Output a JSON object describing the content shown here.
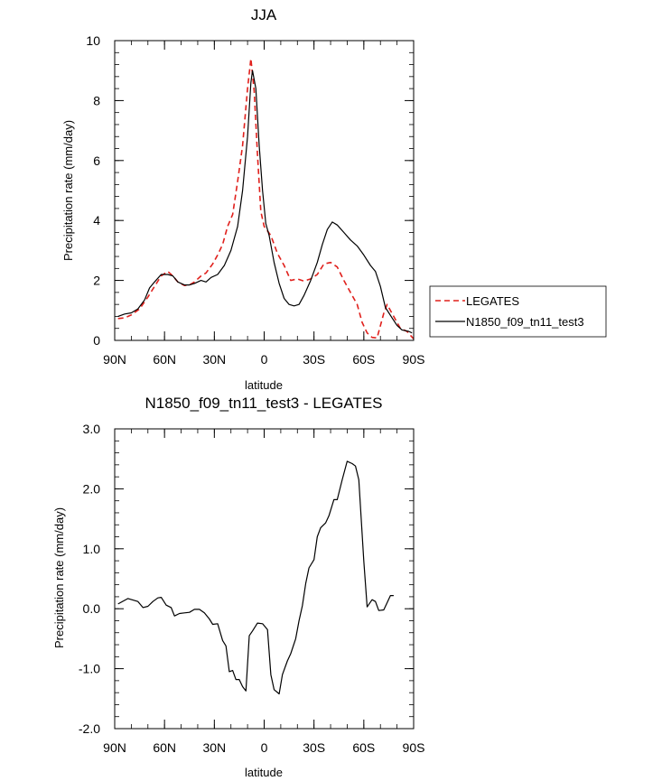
{
  "chart_data": [
    {
      "type": "line",
      "title": "JJA",
      "xlabel": "latitude",
      "ylabel": "Precipitation rate (mm/day)",
      "xlim": [
        90,
        -90
      ],
      "ylim": [
        0,
        10
      ],
      "x_ticks": [
        {
          "value": 90,
          "label": "90N"
        },
        {
          "value": 60,
          "label": "60N"
        },
        {
          "value": 30,
          "label": "30N"
        },
        {
          "value": 0,
          "label": "0"
        },
        {
          "value": -30,
          "label": "30S"
        },
        {
          "value": -60,
          "label": "60S"
        },
        {
          "value": -90,
          "label": "90S"
        }
      ],
      "y_ticks": [
        {
          "value": 0,
          "label": "0"
        },
        {
          "value": 2,
          "label": "2"
        },
        {
          "value": 4,
          "label": "4"
        },
        {
          "value": 6,
          "label": "6"
        },
        {
          "value": 8,
          "label": "8"
        },
        {
          "value": 10,
          "label": "10"
        }
      ],
      "legend": {
        "position": "right"
      },
      "series": [
        {
          "name": "LEGATES",
          "color": "#e0201c",
          "dash": "dashed",
          "points": [
            [
              88,
              0.73
            ],
            [
              84,
              0.75
            ],
            [
              80,
              0.85
            ],
            [
              75,
              1.05
            ],
            [
              70,
              1.45
            ],
            [
              66,
              1.8
            ],
            [
              62,
              2.15
            ],
            [
              58,
              2.3
            ],
            [
              55,
              2.15
            ],
            [
              52,
              1.95
            ],
            [
              48,
              1.83
            ],
            [
              45,
              1.85
            ],
            [
              42,
              1.95
            ],
            [
              38,
              2.15
            ],
            [
              35,
              2.25
            ],
            [
              31,
              2.55
            ],
            [
              28,
              2.85
            ],
            [
              25,
              3.2
            ],
            [
              22,
              3.8
            ],
            [
              19,
              4.2
            ],
            [
              16,
              5.3
            ],
            [
              13,
              6.5
            ],
            [
              10,
              8.4
            ],
            [
              8,
              9.4
            ],
            [
              6,
              8.3
            ],
            [
              4,
              6.2
            ],
            [
              2,
              4.3
            ],
            [
              0,
              3.8
            ],
            [
              -4,
              3.5
            ],
            [
              -8,
              2.9
            ],
            [
              -12,
              2.5
            ],
            [
              -16,
              2.0
            ],
            [
              -20,
              2.05
            ],
            [
              -24,
              1.98
            ],
            [
              -28,
              2.05
            ],
            [
              -32,
              2.2
            ],
            [
              -36,
              2.55
            ],
            [
              -40,
              2.6
            ],
            [
              -44,
              2.45
            ],
            [
              -48,
              2.0
            ],
            [
              -52,
              1.6
            ],
            [
              -56,
              1.2
            ],
            [
              -59,
              0.6
            ],
            [
              -62,
              0.25
            ],
            [
              -65,
              0.1
            ],
            [
              -68,
              0.08
            ],
            [
              -72,
              0.9
            ],
            [
              -74,
              1.2
            ],
            [
              -78,
              0.8
            ],
            [
              -82,
              0.4
            ],
            [
              -86,
              0.3
            ],
            [
              -90,
              0.05
            ]
          ]
        },
        {
          "name": "N1850_f09_tn11_test3",
          "color": "#000000",
          "dash": "solid",
          "points": [
            [
              88,
              0.8
            ],
            [
              84,
              0.88
            ],
            [
              80,
              0.92
            ],
            [
              76,
              1.05
            ],
            [
              72,
              1.35
            ],
            [
              69,
              1.75
            ],
            [
              66,
              1.95
            ],
            [
              62,
              2.2
            ],
            [
              58,
              2.2
            ],
            [
              55,
              2.15
            ],
            [
              52,
              1.95
            ],
            [
              48,
              1.85
            ],
            [
              45,
              1.85
            ],
            [
              42,
              1.9
            ],
            [
              38,
              2.0
            ],
            [
              35,
              1.95
            ],
            [
              32,
              2.1
            ],
            [
              28,
              2.2
            ],
            [
              24,
              2.5
            ],
            [
              20,
              3.0
            ],
            [
              16,
              3.8
            ],
            [
              13,
              5.0
            ],
            [
              10,
              6.8
            ],
            [
              8,
              8.6
            ],
            [
              7,
              9.0
            ],
            [
              5,
              8.4
            ],
            [
              3,
              6.5
            ],
            [
              1,
              5.0
            ],
            [
              -1,
              3.9
            ],
            [
              -3,
              3.5
            ],
            [
              -6,
              2.6
            ],
            [
              -9,
              1.9
            ],
            [
              -12,
              1.4
            ],
            [
              -15,
              1.2
            ],
            [
              -18,
              1.15
            ],
            [
              -21,
              1.2
            ],
            [
              -24,
              1.5
            ],
            [
              -28,
              2.0
            ],
            [
              -32,
              2.6
            ],
            [
              -35,
              3.2
            ],
            [
              -38,
              3.7
            ],
            [
              -41,
              3.95
            ],
            [
              -44,
              3.85
            ],
            [
              -48,
              3.6
            ],
            [
              -52,
              3.35
            ],
            [
              -56,
              3.15
            ],
            [
              -60,
              2.85
            ],
            [
              -64,
              2.5
            ],
            [
              -67,
              2.3
            ],
            [
              -70,
              1.8
            ],
            [
              -73,
              1.1
            ],
            [
              -77,
              0.75
            ],
            [
              -80,
              0.5
            ],
            [
              -83,
              0.35
            ],
            [
              -87,
              0.3
            ],
            [
              -89,
              0.25
            ]
          ]
        }
      ]
    },
    {
      "type": "line",
      "title": "N1850_f09_tn11_test3 - LEGATES",
      "xlabel": "latitude",
      "ylabel": "Precipitation rate (mm/day)",
      "xlim": [
        90,
        -90
      ],
      "ylim": [
        -2,
        3
      ],
      "x_ticks": [
        {
          "value": 90,
          "label": "90N"
        },
        {
          "value": 60,
          "label": "60N"
        },
        {
          "value": 30,
          "label": "30N"
        },
        {
          "value": 0,
          "label": "0"
        },
        {
          "value": -30,
          "label": "30S"
        },
        {
          "value": -60,
          "label": "60S"
        },
        {
          "value": -90,
          "label": "90S"
        }
      ],
      "y_ticks": [
        {
          "value": -2,
          "label": "-2.0"
        },
        {
          "value": -1,
          "label": "-1.0"
        },
        {
          "value": 0,
          "label": "0.0"
        },
        {
          "value": 1,
          "label": "1.0"
        },
        {
          "value": 2,
          "label": "2.0"
        },
        {
          "value": 3,
          "label": "3.0"
        }
      ],
      "series": [
        {
          "name": "N1850_f09_tn11_test3 - LEGATES",
          "color": "#000000",
          "dash": "solid",
          "points": [
            [
              88,
              0.08
            ],
            [
              82,
              0.17
            ],
            [
              76,
              0.12
            ],
            [
              73,
              0.02
            ],
            [
              70,
              0.04
            ],
            [
              67,
              0.12
            ],
            [
              64,
              0.18
            ],
            [
              62,
              0.19
            ],
            [
              59,
              0.06
            ],
            [
              56,
              0.02
            ],
            [
              54,
              -0.12
            ],
            [
              51,
              -0.08
            ],
            [
              48,
              -0.07
            ],
            [
              45,
              -0.06
            ],
            [
              42,
              -0.01
            ],
            [
              39,
              -0.01
            ],
            [
              36,
              -0.07
            ],
            [
              33,
              -0.17
            ],
            [
              31,
              -0.26
            ],
            [
              28,
              -0.25
            ],
            [
              25,
              -0.53
            ],
            [
              23,
              -0.62
            ],
            [
              21,
              -1.05
            ],
            [
              19,
              -1.03
            ],
            [
              17,
              -1.18
            ],
            [
              15,
              -1.18
            ],
            [
              13,
              -1.3
            ],
            [
              11,
              -1.37
            ],
            [
              9,
              -0.45
            ],
            [
              7,
              -0.37
            ],
            [
              4,
              -0.24
            ],
            [
              1,
              -0.25
            ],
            [
              -2,
              -0.35
            ],
            [
              -4,
              -1.1
            ],
            [
              -6,
              -1.35
            ],
            [
              -9,
              -1.42
            ],
            [
              -11,
              -1.1
            ],
            [
              -14,
              -0.87
            ],
            [
              -16,
              -0.75
            ],
            [
              -19,
              -0.5
            ],
            [
              -21,
              -0.2
            ],
            [
              -23,
              0.05
            ],
            [
              -25,
              0.42
            ],
            [
              -27,
              0.68
            ],
            [
              -30,
              0.82
            ],
            [
              -32,
              1.2
            ],
            [
              -34,
              1.35
            ],
            [
              -37,
              1.43
            ],
            [
              -39,
              1.55
            ],
            [
              -42,
              1.82
            ],
            [
              -44,
              1.82
            ],
            [
              -47,
              2.15
            ],
            [
              -50,
              2.46
            ],
            [
              -53,
              2.42
            ],
            [
              -55,
              2.38
            ],
            [
              -57,
              2.15
            ],
            [
              -60,
              0.8
            ],
            [
              -62,
              0.03
            ],
            [
              -65,
              0.15
            ],
            [
              -67,
              0.12
            ],
            [
              -69,
              -0.03
            ],
            [
              -72,
              -0.02
            ],
            [
              -74,
              0.1
            ],
            [
              -76,
              0.22
            ],
            [
              -78,
              0.22
            ]
          ]
        }
      ]
    }
  ]
}
